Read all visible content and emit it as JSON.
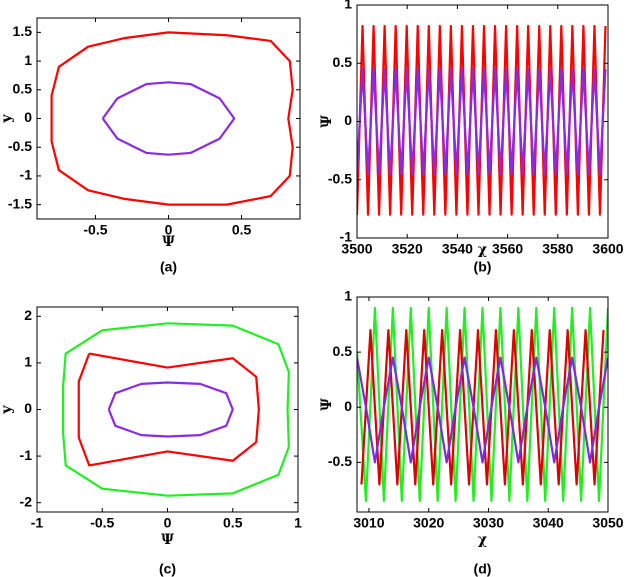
{
  "chart_data": [
    {
      "type": "line",
      "caption": "(a)",
      "xlabel": "Ψ",
      "ylabel": "y",
      "xlim": [
        -0.9,
        0.9
      ],
      "xticks": [
        -0.5,
        0,
        0.5
      ],
      "ylim": [
        -1.75,
        1.75
      ],
      "yticks": [
        -1.5,
        -1,
        -0.5,
        0,
        0.5,
        1,
        1.5
      ],
      "series": [
        {
          "color": "#ff0000",
          "x": [
            0,
            0.4,
            0.7,
            0.83,
            0.85,
            0.82,
            0.85,
            0.83,
            0.7,
            0.4,
            0,
            -0.3,
            -0.55,
            -0.75,
            -0.8,
            -0.8,
            -0.8,
            -0.75,
            -0.55,
            -0.3,
            0
          ],
          "values": [
            1.5,
            1.45,
            1.35,
            1.0,
            0.5,
            0,
            -0.5,
            -1.0,
            -1.35,
            -1.5,
            -1.5,
            -1.4,
            -1.25,
            -0.9,
            -0.4,
            0,
            0.4,
            0.9,
            1.25,
            1.4,
            1.5
          ]
        },
        {
          "color": "#8a2be2",
          "x": [
            -0.45,
            -0.35,
            -0.15,
            0,
            0.15,
            0.35,
            0.45,
            0.35,
            0.15,
            0,
            -0.15,
            -0.35,
            -0.45
          ],
          "values": [
            0,
            0.35,
            0.6,
            0.63,
            0.6,
            0.35,
            0,
            -0.35,
            -0.6,
            -0.63,
            -0.6,
            -0.35,
            0
          ]
        }
      ]
    },
    {
      "type": "line",
      "caption": "(b)",
      "xlabel": "χ",
      "ylabel": "Ψ",
      "xlim": [
        3500,
        3600
      ],
      "xticks": [
        3500,
        3520,
        3540,
        3560,
        3580,
        3600
      ],
      "ylim": [
        -1,
        1
      ],
      "yticks": [
        -1,
        -0.5,
        0,
        0.5,
        1
      ],
      "x": [
        3500,
        3502.2,
        3504.4,
        3506.6,
        3508.8,
        3511,
        3513.2,
        3515.4,
        3517.6,
        3519.8,
        3522,
        3524.2,
        3526.4,
        3528.6,
        3530.8,
        3533,
        3535.2,
        3537.4,
        3539.6,
        3541.8,
        3544,
        3546.2,
        3548.4,
        3550.6,
        3552.8,
        3555,
        3557.2,
        3559.4,
        3561.6,
        3563.8,
        3566,
        3568.2,
        3570.4,
        3572.6,
        3574.8,
        3577,
        3579.2,
        3581.4,
        3583.6,
        3585.8,
        3588,
        3590.2,
        3592.4,
        3594.6,
        3596.8,
        3599
      ],
      "series": [
        {
          "color": "#ff0000",
          "values": [
            -0.8,
            0.82,
            -0.8,
            0.82,
            -0.8,
            0.82,
            -0.8,
            0.82,
            -0.8,
            0.82,
            -0.8,
            0.82,
            -0.8,
            0.82,
            -0.8,
            0.82,
            -0.8,
            0.82,
            -0.8,
            0.82,
            -0.8,
            0.82,
            -0.8,
            0.82,
            -0.8,
            0.82,
            -0.8,
            0.82,
            -0.8,
            0.82,
            -0.8,
            0.82,
            -0.8,
            0.82,
            -0.8,
            0.82,
            -0.8,
            0.82,
            -0.8,
            0.82,
            -0.8,
            0.82,
            -0.8,
            0.82,
            -0.8,
            0.82
          ]
        },
        {
          "color": "#8a2be2",
          "values": [
            -0.45,
            0.45,
            -0.45,
            0.45,
            -0.45,
            0.45,
            -0.45,
            0.45,
            -0.45,
            0.45,
            -0.45,
            0.45,
            -0.45,
            0.45,
            -0.45,
            0.45,
            -0.45,
            0.45,
            -0.45,
            0.45,
            -0.45,
            0.45,
            -0.45,
            0.45,
            -0.45,
            0.45,
            -0.45,
            0.45,
            -0.45,
            0.45,
            -0.45,
            0.45,
            -0.45,
            0.45,
            -0.45,
            0.45,
            -0.45,
            0.45,
            -0.45,
            0.45,
            -0.45,
            0.45,
            -0.45,
            0.45,
            -0.45,
            0.45
          ]
        }
      ]
    },
    {
      "type": "line",
      "caption": "(c)",
      "xlabel": "Ψ",
      "ylabel": "y",
      "xlim": [
        -1,
        1
      ],
      "xticks": [
        -1,
        -0.5,
        0,
        0.5,
        1
      ],
      "ylim": [
        -2.2,
        2.2
      ],
      "yticks": [
        -2,
        -1,
        0,
        1,
        2
      ],
      "series": [
        {
          "color": "#22ee22",
          "x": [
            0,
            0.5,
            0.85,
            0.93,
            0.92,
            0.93,
            0.85,
            0.5,
            0,
            -0.5,
            -0.78,
            -0.8,
            -0.8,
            -0.8,
            -0.78,
            -0.5,
            0
          ],
          "values": [
            1.85,
            1.8,
            1.4,
            0.8,
            0,
            -0.8,
            -1.4,
            -1.8,
            -1.85,
            -1.7,
            -1.2,
            -0.5,
            0,
            0.5,
            1.2,
            1.7,
            1.85
          ]
        },
        {
          "color": "#ff0000",
          "x": [
            -0.6,
            0,
            0.5,
            0.68,
            0.7,
            0.68,
            0.5,
            0,
            -0.6,
            -0.68,
            -0.68,
            -0.68,
            -0.6
          ],
          "values": [
            1.2,
            0.9,
            1.1,
            0.7,
            0,
            -0.7,
            -1.1,
            -0.9,
            -1.2,
            -0.6,
            0,
            0.6,
            1.2
          ]
        },
        {
          "color": "#8a2be2",
          "x": [
            -0.45,
            -0.4,
            -0.2,
            0,
            0.25,
            0.45,
            0.5,
            0.45,
            0.25,
            0,
            -0.2,
            -0.4,
            -0.45
          ],
          "values": [
            0,
            0.35,
            0.55,
            0.58,
            0.55,
            0.35,
            0,
            -0.35,
            -0.55,
            -0.58,
            -0.55,
            -0.35,
            0
          ]
        }
      ]
    },
    {
      "type": "line",
      "caption": "(d)",
      "xlabel": "χ",
      "ylabel": "Ψ",
      "xlim": [
        3008,
        3050
      ],
      "xticks": [
        3010,
        3020,
        3030,
        3040,
        3050
      ],
      "ylim": [
        -0.95,
        1
      ],
      "yticks": [
        -0.5,
        0,
        0.5,
        1
      ],
      "x": [
        3008,
        3009.5,
        3011,
        3012.5,
        3014,
        3015.5,
        3017,
        3018.5,
        3020,
        3021.5,
        3023,
        3024.5,
        3026,
        3027.5,
        3029,
        3030.5,
        3032,
        3033.5,
        3035,
        3036.5,
        3038,
        3039.5,
        3041,
        3042.5,
        3044,
        3045.5,
        3047,
        3048.5,
        3050
      ],
      "series": [
        {
          "color": "#22ee22",
          "values": [
            0.5,
            -0.85,
            0.9,
            -0.85,
            0.9,
            -0.85,
            0.9,
            -0.85,
            0.9,
            -0.85,
            0.9,
            -0.85,
            0.9,
            -0.85,
            0.9,
            -0.85,
            0.9,
            -0.85,
            0.9,
            -0.85,
            0.9,
            -0.85,
            0.9,
            -0.85,
            0.9,
            -0.85,
            0.9,
            -0.85,
            0.9
          ]
        },
        {
          "color": "#dd0000",
          "x": [
            3008.75,
            3010.25,
            3011.75,
            3013.25,
            3014.75,
            3016.25,
            3017.75,
            3019.25,
            3020.75,
            3022.25,
            3023.75,
            3025.25,
            3026.75,
            3028.25,
            3029.75,
            3031.25,
            3032.75,
            3034.25,
            3035.75,
            3037.25,
            3038.75,
            3040.25,
            3041.75,
            3043.25,
            3044.75,
            3046.25,
            3047.75,
            3049.25
          ],
          "values": [
            -0.7,
            0.7,
            -0.7,
            0.7,
            -0.7,
            0.7,
            -0.7,
            0.7,
            -0.7,
            0.7,
            -0.7,
            0.7,
            -0.7,
            0.7,
            -0.7,
            0.7,
            -0.7,
            0.7,
            -0.7,
            0.7,
            -0.7,
            0.7,
            -0.7,
            0.7,
            -0.7,
            0.7,
            -0.7,
            0.7
          ]
        },
        {
          "color": "#7b2be2",
          "values": [
            0.45,
            0,
            -0.5,
            0,
            0.45,
            0,
            -0.5,
            0,
            0.45,
            0,
            -0.5,
            0,
            0.45,
            0,
            -0.5,
            0,
            0.45,
            0,
            -0.5,
            0,
            0.45,
            0,
            -0.5,
            0,
            0.45,
            0,
            -0.5,
            0,
            0.45
          ]
        }
      ]
    }
  ]
}
